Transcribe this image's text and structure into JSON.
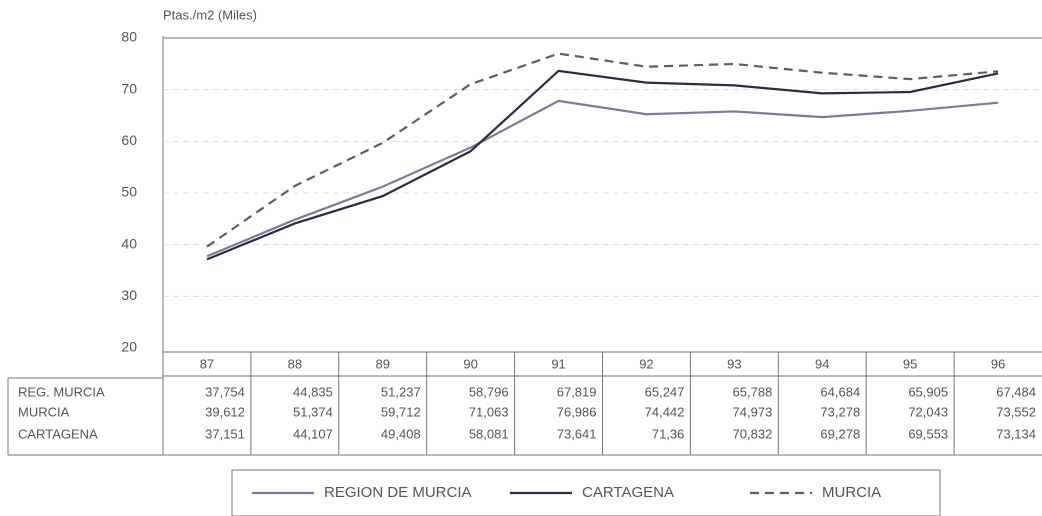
{
  "chart_data": {
    "type": "line",
    "y_label": "Ptas./m2 (Miles)",
    "categories": [
      "87",
      "88",
      "89",
      "90",
      "91",
      "92",
      "93",
      "94",
      "95",
      "96"
    ],
    "ylim": [
      20,
      80
    ],
    "yticks": [
      20,
      30,
      40,
      50,
      60,
      70,
      80
    ],
    "grid": true,
    "series": [
      {
        "name": "REGION DE MURCIA",
        "row_label": "REG. MURCIA",
        "color": "#7c7b9c",
        "dash": false,
        "values": [
          37.754,
          44.835,
          51.237,
          58.796,
          67.819,
          65.247,
          65.788,
          64.684,
          65.905,
          67.484
        ],
        "value_labels": [
          "37,754",
          "44,835",
          "51,237",
          "58,796",
          "67,819",
          "65,247",
          "65,788",
          "64,684",
          "65,905",
          "67,484"
        ]
      },
      {
        "name": "MURCIA",
        "row_label": "MURCIA",
        "color": "#5e5e66",
        "dash": true,
        "values": [
          39.612,
          51.374,
          59.712,
          71.063,
          76.986,
          74.442,
          74.973,
          73.278,
          72.043,
          73.552
        ],
        "value_labels": [
          "39,612",
          "51,374",
          "59,712",
          "71,063",
          "76,986",
          "74,442",
          "74,973",
          "73,278",
          "72,043",
          "73,552"
        ]
      },
      {
        "name": "CARTAGENA",
        "row_label": "CARTAGENA",
        "color": "#2b2b42",
        "dash": false,
        "values": [
          37.151,
          44.107,
          49.408,
          58.081,
          73.641,
          71.36,
          70.832,
          69.278,
          69.553,
          73.134
        ],
        "value_labels": [
          "37,151",
          "44,107",
          "49,408",
          "58,081",
          "73,641",
          "71,36",
          "70,832",
          "69,278",
          "69,553",
          "73,134"
        ]
      }
    ]
  }
}
